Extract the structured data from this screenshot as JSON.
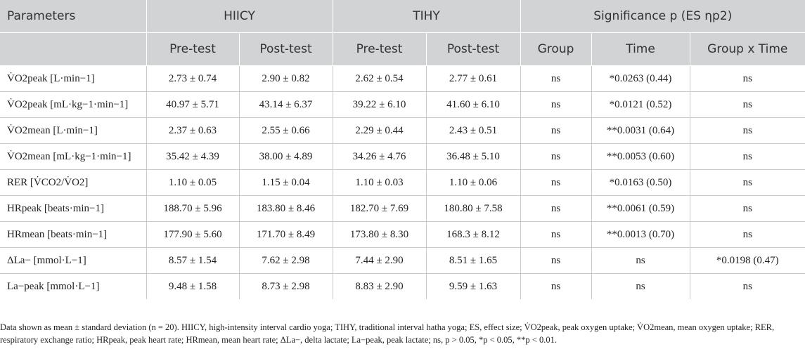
{
  "header": {
    "parameters": "Parameters",
    "group1": "HIICY",
    "group2": "TIHY",
    "significance": "Significance p (ES ηp2)",
    "sub_labels": [
      "Pre-test",
      "Post-test",
      "Pre-test",
      "Post-test",
      "Group",
      "Time",
      "Group x Time"
    ]
  },
  "rows": [
    {
      "param": "V̇O2peak [L·min−1]",
      "values": [
        "2.73 ± 0.74",
        "2.90 ± 0.82",
        "2.62 ± 0.54",
        "2.77 ± 0.61",
        "ns",
        "*0.0263 (0.44)",
        "ns"
      ]
    },
    {
      "param": "V̇O2peak [mL·kg−1·min−1]",
      "values": [
        "40.97 ± 5.71",
        "43.14 ± 6.37",
        "39.22 ± 6.10",
        "41.60 ± 6.10",
        "ns",
        "*0.0121 (0.52)",
        "ns"
      ]
    },
    {
      "param": "V̇O2mean [L·min−1]",
      "values": [
        "2.37 ± 0.63",
        "2.55 ± 0.66",
        "2.29 ± 0.44",
        "2.43 ± 0.51",
        "ns",
        "**0.0031 (0.64)",
        "ns"
      ]
    },
    {
      "param": "V̇O2mean [mL·kg−1·min−1]",
      "values": [
        "35.42 ± 4.39",
        "38.00 ± 4.89",
        "34.26 ± 4.76",
        "36.48 ± 5.10",
        "ns",
        "**0.0053 (0.60)",
        "ns"
      ]
    },
    {
      "param": "RER [V̇CO2/V̇O2]",
      "values": [
        "1.10 ± 0.05",
        "1.15 ± 0.04",
        "1.10 ± 0.03",
        "1.10 ± 0.06",
        "ns",
        "*0.0163 (0.50)",
        "ns"
      ]
    },
    {
      "param": "HRpeak [beats·min−1]",
      "values": [
        "188.70 ± 5.96",
        "183.80 ± 8.46",
        "182.70 ± 7.69",
        "180.80 ± 7.58",
        "ns",
        "**0.0061 (0.59)",
        "ns"
      ]
    },
    {
      "param": "HRmean [beats·min−1]",
      "values": [
        "177.90 ± 5.60",
        "171.70 ± 8.49",
        "173.80 ± 8.30",
        "168.3 ± 8.12",
        "ns",
        "**0.0013 (0.70)",
        "ns"
      ]
    },
    {
      "param": "ΔLa− [mmol·L−1]",
      "values": [
        "8.57 ± 1.54",
        "7.62 ± 2.98",
        "7.44 ± 2.90",
        "8.51 ± 1.65",
        "ns",
        "ns",
        "*0.0198 (0.47)"
      ]
    },
    {
      "param": "La−peak [mmol·L−1]",
      "values": [
        "9.48 ± 1.58",
        "8.73 ± 2.98",
        "8.83 ± 2.90",
        "9.59 ± 1.63",
        "ns",
        "ns",
        "ns"
      ]
    }
  ],
  "footnote": "Data shown as mean ± standard deviation (n = 20). HIICY, high-intensity interval cardio yoga; TIHY, traditional interval hatha yoga; ES, effect size; V̇O2peak, peak oxygen uptake; V̇O2mean, mean oxygen uptake; RER, respiratory exchange ratio; HRpeak, peak heart rate; HRmean, mean heart rate; ΔLa−, delta lactate; La−peak, peak lactate; ns, p > 0.05, *p < 0.05, **p < 0.01."
}
